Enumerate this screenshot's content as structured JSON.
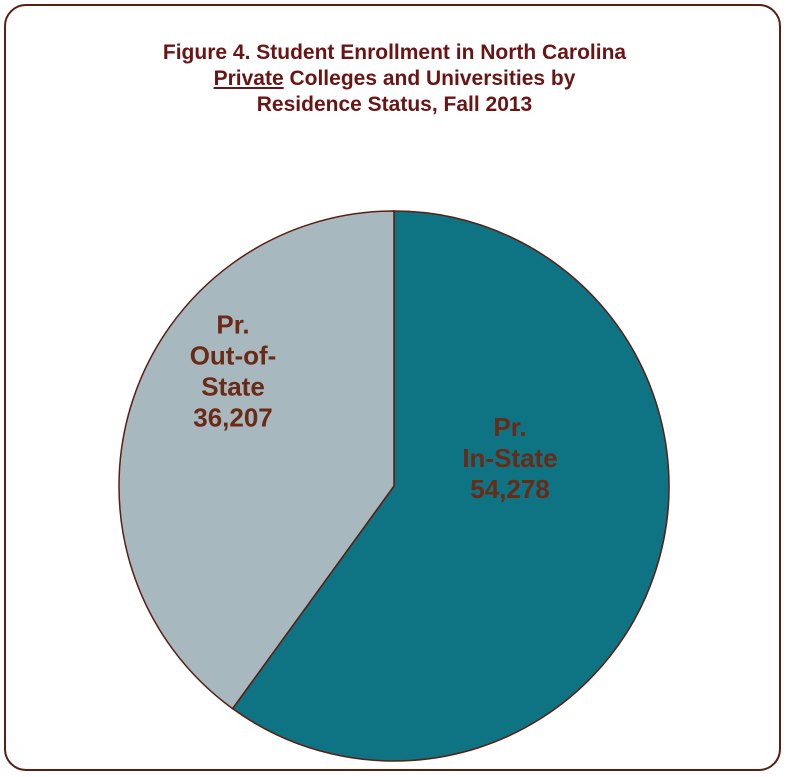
{
  "title": {
    "line1": "Figure 4.  Student Enrollment in North Carolina",
    "line2_underlined": "Private",
    "line2_rest": " Colleges and Universities by",
    "line3": "Residence Status, Fall 2013"
  },
  "chart_data": {
    "type": "pie",
    "title": "Figure 4.  Student Enrollment in North Carolina Private Colleges and Universities by Residence Status, Fall 2013",
    "slices": [
      {
        "name": "Pr. In-State",
        "label_lines": [
          "Pr.",
          "In-State",
          "54,278"
        ],
        "value": 54278,
        "color": "#0e7383"
      },
      {
        "name": "Pr. Out-of-State",
        "label_lines": [
          "Pr.",
          "Out-of-",
          "State",
          "36,207"
        ],
        "value": 36207,
        "color": "#a7b9bf"
      }
    ],
    "start": "12 o'clock",
    "direction": "clockwise",
    "slice_border_color": "#5a1e12",
    "label_color": "#6b2a16",
    "legend": "none"
  }
}
